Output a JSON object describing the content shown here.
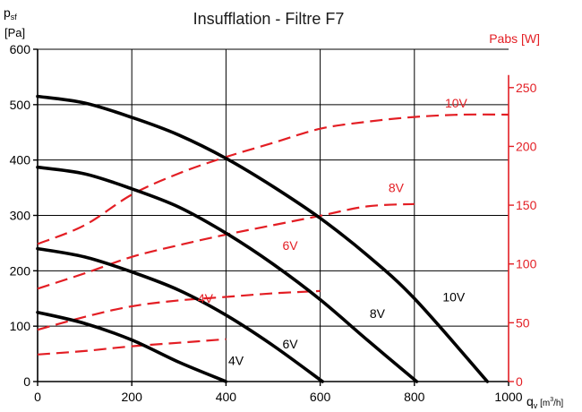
{
  "chart_data": {
    "type": "line",
    "title": "Insufflation - Filtre F7",
    "xaxis": {
      "label_main": "q",
      "label_sub": "v",
      "label_unit_pre": " [m",
      "label_unit_sup": "3",
      "label_unit_post": "/h]",
      "min": 0,
      "max": 1000,
      "ticks": [
        0,
        200,
        400,
        600,
        800,
        1000
      ],
      "tick_labels": [
        "0",
        "200",
        "400",
        "600",
        "800",
        "1000"
      ],
      "gridlines": [
        200,
        400,
        600,
        800
      ]
    },
    "yaxis_left": {
      "label_main": "p",
      "label_sub": "sf",
      "unit": "[Pa]",
      "min": 0,
      "max": 600,
      "ticks": [
        0,
        100,
        200,
        300,
        400,
        500,
        600
      ],
      "tick_labels": [
        "0",
        "100",
        "200",
        "300",
        "400",
        "500",
        "600"
      ],
      "color": "#000000"
    },
    "yaxis_right": {
      "label": "Pabs [W]",
      "min": 0,
      "max": 282.6,
      "ticks": [
        0,
        50,
        100,
        150,
        200,
        250
      ],
      "tick_labels": [
        "0",
        "50",
        "100",
        "150",
        "200",
        "250"
      ],
      "color": "#e31e24"
    },
    "grid": true,
    "pressure_series": [
      {
        "name": "4V",
        "axis": "left",
        "color": "#000000",
        "style": "solid",
        "x": [
          0,
          100,
          200,
          300,
          400
        ],
        "y": [
          125,
          105,
          75,
          35,
          0
        ]
      },
      {
        "name": "6V",
        "axis": "left",
        "color": "#000000",
        "style": "solid",
        "x": [
          0,
          100,
          200,
          300,
          400,
          500,
          605
        ],
        "y": [
          240,
          225,
          198,
          165,
          120,
          65,
          0
        ]
      },
      {
        "name": "8V",
        "axis": "left",
        "color": "#000000",
        "style": "solid",
        "x": [
          0,
          100,
          200,
          300,
          400,
          500,
          600,
          700,
          805
        ],
        "y": [
          387,
          375,
          348,
          315,
          268,
          212,
          148,
          75,
          0
        ]
      },
      {
        "name": "10V",
        "axis": "left",
        "color": "#000000",
        "style": "solid",
        "x": [
          0,
          100,
          200,
          300,
          400,
          500,
          600,
          700,
          800,
          955
        ],
        "y": [
          515,
          503,
          477,
          445,
          403,
          352,
          295,
          228,
          150,
          0
        ]
      }
    ],
    "power_series": [
      {
        "name": "4V",
        "axis": "right",
        "color": "#e31e24",
        "style": "dashed",
        "x": [
          0,
          100,
          200,
          300,
          400
        ],
        "y": [
          23,
          26,
          30,
          33,
          36
        ]
      },
      {
        "name": "6V",
        "axis": "right",
        "color": "#e31e24",
        "style": "dashed",
        "x": [
          0,
          100,
          200,
          300,
          400,
          500,
          600
        ],
        "y": [
          44,
          55,
          64,
          69,
          72,
          75,
          77
        ]
      },
      {
        "name": "8V",
        "axis": "right",
        "color": "#e31e24",
        "style": "dashed",
        "x": [
          0,
          100,
          200,
          300,
          400,
          500,
          600,
          700,
          800
        ],
        "y": [
          79,
          92,
          106,
          116,
          125,
          133,
          141,
          149,
          151
        ]
      },
      {
        "name": "10V",
        "axis": "right",
        "color": "#e31e24",
        "style": "dashed",
        "x": [
          0,
          100,
          200,
          300,
          400,
          500,
          600,
          700,
          800,
          900,
          1000
        ],
        "y": [
          117,
          133,
          159,
          177,
          191,
          203,
          215,
          221,
          225,
          227,
          227
        ]
      }
    ]
  }
}
